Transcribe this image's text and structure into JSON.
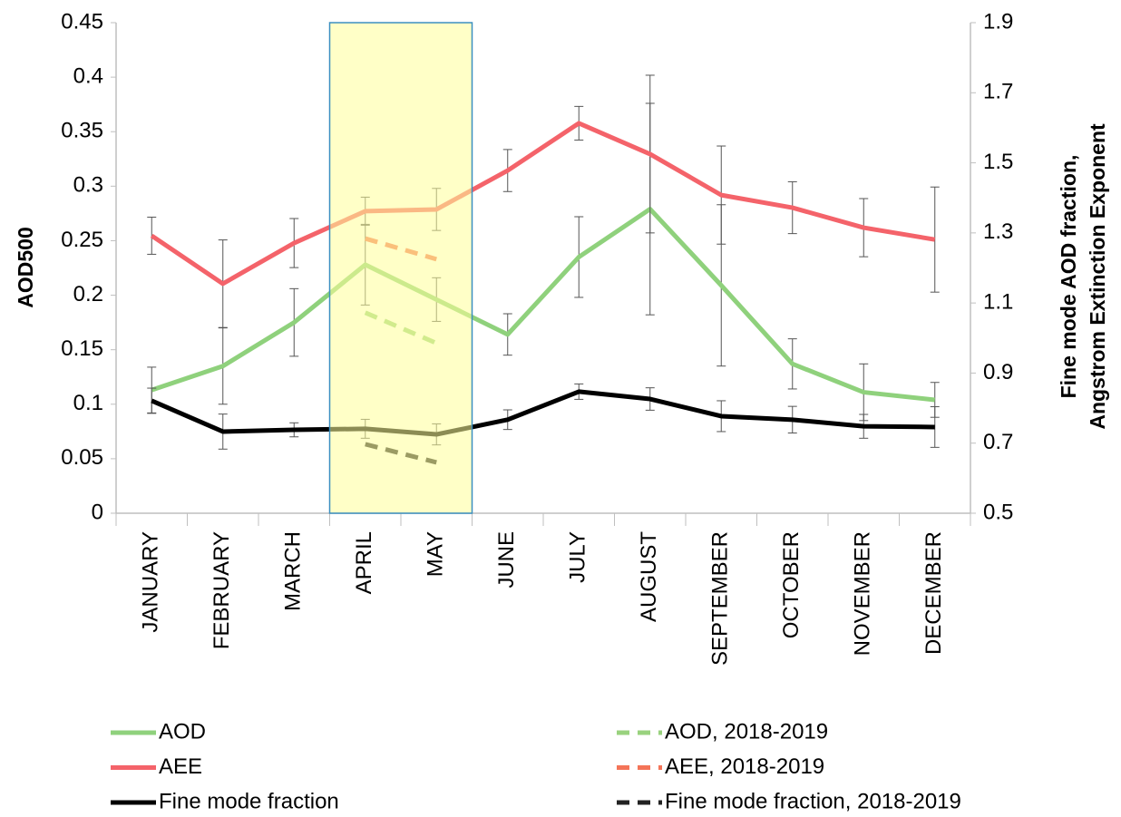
{
  "chart_data": {
    "type": "line",
    "y_label": "AOD500",
    "y2_label": [
      "Fine mode AOD fraction,",
      "Angstrom Extinction Exponent"
    ],
    "categories": [
      "JANUARY",
      "FEBRUARY",
      "MARCH",
      "APRIL",
      "MAY",
      "JUNE",
      "JULY",
      "AUGUST",
      "SEPTEMBER",
      "OCTOBER",
      "NOVEMBER",
      "DECEMBER"
    ],
    "ylim": [
      0,
      0.45
    ],
    "yticks": [
      0,
      0.05,
      0.1,
      0.15,
      0.2,
      0.25,
      0.3,
      0.35,
      0.4,
      0.45
    ],
    "y2lim": [
      0.5,
      1.9
    ],
    "y2ticks": [
      0.5,
      0.7,
      0.9,
      1.1,
      1.3,
      1.5,
      1.7,
      1.9
    ],
    "highlight": {
      "from": "APRIL",
      "to": "MAY",
      "color": "#ffff99",
      "border": "#3b8fc0"
    },
    "series": [
      {
        "name": "AOD",
        "color": "#8fd17c",
        "dash": false,
        "axis": "y",
        "values": [
          0.113,
          0.135,
          0.175,
          0.228,
          0.196,
          0.164,
          0.235,
          0.279,
          0.209,
          0.137,
          0.111,
          0.104
        ],
        "errors": [
          0.021,
          0.035,
          0.031,
          0.037,
          0.02,
          0.019,
          0.037,
          0.097,
          0.074,
          0.023,
          0.026,
          0.016
        ]
      },
      {
        "name": "AEE",
        "color": "#f4636a",
        "dash": false,
        "axis": "y2",
        "values": [
          1.292,
          1.155,
          1.271,
          1.362,
          1.367,
          1.478,
          1.613,
          1.525,
          1.408,
          1.372,
          1.315,
          1.281
        ],
        "errors": [
          0.053,
          0.125,
          0.07,
          0.04,
          0.06,
          0.06,
          0.048,
          0.225,
          0.14,
          0.074,
          0.083,
          0.15
        ]
      },
      {
        "name": "Fine mode fraction",
        "color": "#000000",
        "dash": false,
        "axis": "y2",
        "values": [
          0.821,
          0.733,
          0.738,
          0.741,
          0.725,
          0.767,
          0.847,
          0.826,
          0.777,
          0.767,
          0.748,
          0.746
        ],
        "errors": [
          0.036,
          0.05,
          0.02,
          0.027,
          0.03,
          0.028,
          0.022,
          0.032,
          0.044,
          0.038,
          0.034,
          0.058
        ]
      },
      {
        "name": "AOD, 2018-2019",
        "color": "#99d27e",
        "dash": true,
        "axis": "y",
        "values": [
          null,
          null,
          null,
          0.184,
          0.156,
          null,
          null,
          null,
          null,
          null,
          null,
          null
        ]
      },
      {
        "name": "AEE, 2018-2019",
        "color": "#f47458",
        "dash": true,
        "axis": "y2",
        "values": [
          null,
          null,
          null,
          1.284,
          1.225,
          null,
          null,
          null,
          null,
          null,
          null,
          null
        ]
      },
      {
        "name": "Fine mode fraction, 2018-2019",
        "color": "#222222",
        "dash": true,
        "axis": "y2",
        "values": [
          null,
          null,
          null,
          0.697,
          0.645,
          null,
          null,
          null,
          null,
          null,
          null,
          null
        ]
      }
    ]
  }
}
